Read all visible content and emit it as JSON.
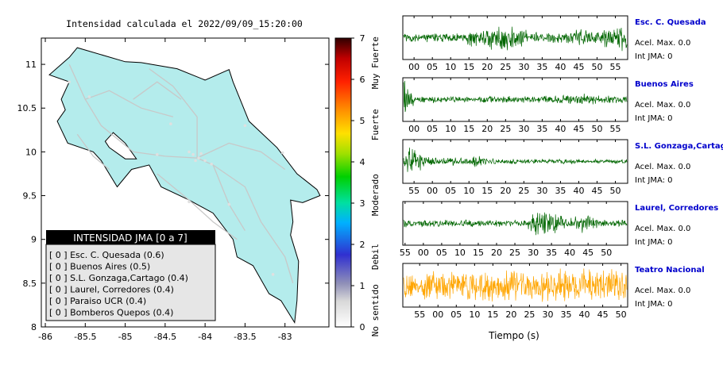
{
  "map": {
    "title": "Intensidad calculada el 2022/09/09_15:20:00",
    "x_ticks": [
      "-86",
      "-85.5",
      "-85",
      "-84.5",
      "-84",
      "-83.5",
      "-83"
    ],
    "y_ticks": [
      "11",
      "10.5",
      "10",
      "9.5",
      "9",
      "8.5",
      "8"
    ],
    "xlim": [
      -86.05,
      -82.45
    ],
    "ylim": [
      8.0,
      11.3
    ],
    "land_color": "#b4ecec",
    "legend": {
      "title": "INTENSIDAD JMA [0 a 7]",
      "rows": [
        "[ 0 ]  Esc. C. Quesada (0.6)",
        "[ 0 ]  Buenos Aires (0.5)",
        "[ 0 ]  S.L. Gonzaga,Cartago (0.4)",
        "[ 0 ]  Laurel, Corredores (0.4)",
        "[ 0 ]  Paraiso UCR (0.4)",
        "[ 0 ]  Bomberos Quepos (0.4)"
      ]
    }
  },
  "colorbar": {
    "ticks": [
      "7",
      "6",
      "5",
      "4",
      "3",
      "2",
      "1",
      "0"
    ],
    "range": [
      0,
      7
    ],
    "labels": [
      {
        "text": "Muy Fuerte",
        "value": 6.4
      },
      {
        "text": "Fuerte",
        "value": 4.9
      },
      {
        "text": "Moderado",
        "value": 3.2
      },
      {
        "text": "Debil",
        "value": 1.7
      },
      {
        "text": "No sentido",
        "value": 0.4
      }
    ]
  },
  "seismograms": {
    "xlabel": "Tiempo (s)",
    "traces": [
      {
        "name": "Esc. C. Quesada",
        "accel": "Acel. Max. 0.0",
        "jma": "Int JMA: 0",
        "color": "#006600",
        "ticks": [
          "00",
          "05",
          "10",
          "15",
          "20",
          "25",
          "30",
          "35",
          "40",
          "45",
          "50",
          "55"
        ],
        "tick_start": 0.05,
        "tick_step": 0.0814,
        "envelope": [
          [
            0,
            0.25
          ],
          [
            0.28,
            0.25
          ],
          [
            0.3,
            0.7
          ],
          [
            0.36,
            0.5
          ],
          [
            0.45,
            0.9
          ],
          [
            0.52,
            0.6
          ],
          [
            0.6,
            0.3
          ],
          [
            0.72,
            0.3
          ],
          [
            0.78,
            0.55
          ],
          [
            0.84,
            0.35
          ],
          [
            0.92,
            0.7
          ],
          [
            1,
            0.9
          ]
        ]
      },
      {
        "name": "Buenos Aires",
        "accel": "Acel. Max. 0.0",
        "jma": "Int JMA: 0",
        "color": "#006600",
        "ticks": [
          "00",
          "05",
          "10",
          "15",
          "20",
          "25",
          "30",
          "35",
          "40",
          "45",
          "50",
          "55"
        ],
        "tick_start": 0.05,
        "tick_step": 0.0814,
        "envelope": [
          [
            0,
            1
          ],
          [
            0.02,
            0.9
          ],
          [
            0.05,
            0.2
          ],
          [
            0.3,
            0.15
          ],
          [
            0.45,
            0.2
          ],
          [
            0.58,
            0.15
          ],
          [
            0.72,
            0.25
          ],
          [
            0.82,
            0.35
          ],
          [
            0.9,
            0.2
          ],
          [
            1,
            0.2
          ]
        ]
      },
      {
        "name": "S.L. Gonzaga,Cartago",
        "accel": "Acel. Max. 0.0",
        "jma": "Int JMA: 0",
        "color": "#006600",
        "ticks": [
          "55",
          "00",
          "05",
          "10",
          "15",
          "20",
          "25",
          "30",
          "35",
          "40",
          "45",
          "50"
        ],
        "tick_start": 0.05,
        "tick_step": 0.0814,
        "envelope": [
          [
            0,
            0.3
          ],
          [
            0.02,
            1
          ],
          [
            0.06,
            0.6
          ],
          [
            0.1,
            0.25
          ],
          [
            0.3,
            0.2
          ],
          [
            0.32,
            0.35
          ],
          [
            0.4,
            0.15
          ],
          [
            1,
            0.12
          ]
        ]
      },
      {
        "name": "Laurel, Corredores",
        "accel": "Acel. Max. 0.0",
        "jma": "Int JMA: 0",
        "color": "#006600",
        "ticks": [
          "55",
          "00",
          "05",
          "10",
          "15",
          "20",
          "25",
          "30",
          "35",
          "40",
          "45",
          "50"
        ],
        "tick_start": 0.01,
        "tick_step": 0.0814,
        "envelope": [
          [
            0,
            0.2
          ],
          [
            0.55,
            0.18
          ],
          [
            0.6,
            0.95
          ],
          [
            0.68,
            0.6
          ],
          [
            0.75,
            0.3
          ],
          [
            0.82,
            0.55
          ],
          [
            0.88,
            0.2
          ],
          [
            1,
            0.2
          ]
        ]
      },
      {
        "name": "Teatro Nacional",
        "accel": "Acel. Max. 0.0",
        "jma": "Int JMA: 0",
        "color": "#ffa500",
        "ticks": [
          "55",
          "00",
          "05",
          "10",
          "15",
          "20",
          "25",
          "30",
          "35",
          "40",
          "45",
          "50"
        ],
        "tick_start": 0.075,
        "tick_step": 0.0814,
        "envelope": [
          [
            0,
            0.7
          ],
          [
            0.3,
            0.9
          ],
          [
            0.5,
            0.8
          ],
          [
            0.7,
            0.9
          ],
          [
            1,
            0.85
          ]
        ]
      }
    ]
  }
}
